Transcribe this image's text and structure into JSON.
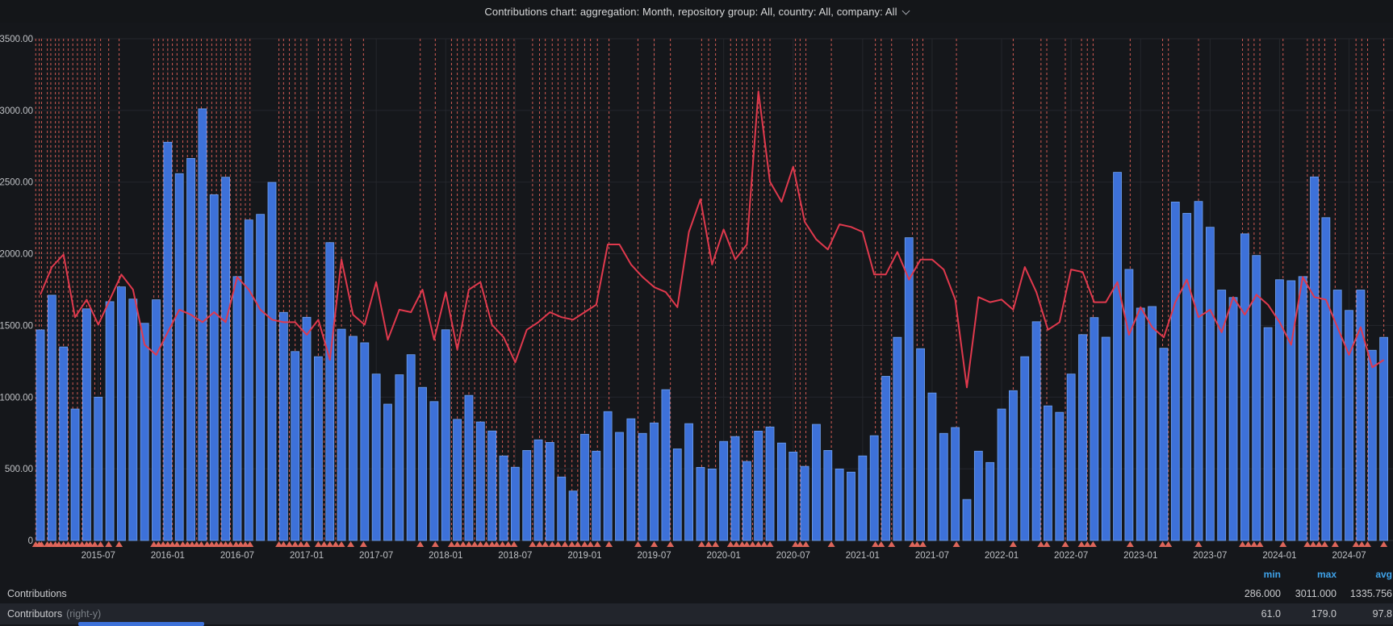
{
  "header": {
    "title": "Contributions chart: aggregation: Month, repository group: All, country: All, company: All",
    "chevron_icon": "chevron-down"
  },
  "chart_data": {
    "type": "bar+line",
    "title": "Contributions by month with contributors overlay",
    "start_month": "2015-02",
    "x_tick_labels": [
      "2015-07",
      "2016-01",
      "2016-07",
      "2017-01",
      "2017-07",
      "2018-01",
      "2018-07",
      "2019-01",
      "2019-07",
      "2020-01",
      "2020-07",
      "2021-01",
      "2021-07",
      "2022-01",
      "2022-07",
      "2023-01",
      "2023-07",
      "2024-01",
      "2024-07"
    ],
    "x_tick_first_index": 5,
    "x_tick_every": 6,
    "y_left": {
      "min": 0,
      "max": 3500,
      "step": 500,
      "tick_labels": [
        "3500.00",
        "3000.00",
        "2500.00",
        "2000.00",
        "1500.00",
        "1000.00",
        "500.00",
        "0"
      ]
    },
    "y_right": {
      "min": 0,
      "max": 200
    },
    "grid": true,
    "legend_position": "bottom",
    "series": [
      {
        "name": "Contributions",
        "type": "bar",
        "axis": "left",
        "color": "#3d71d9",
        "values": [
          1469,
          1711,
          1350,
          917,
          1616,
          1000,
          1666,
          1769,
          1684,
          1515,
          1679,
          2778,
          2559,
          2665,
          3011,
          2412,
          2534,
          1841,
          2236,
          2275,
          2498,
          1591,
          1318,
          1557,
          1282,
          2078,
          1474,
          1424,
          1379,
          1161,
          951,
          1156,
          1296,
          1068,
          969,
          1470,
          845,
          1012,
          827,
          764,
          590,
          511,
          628,
          702,
          684,
          443,
          345,
          741,
          623,
          899,
          754,
          849,
          747,
          820,
          1052,
          639,
          815,
          510,
          499,
          691,
          725,
          551,
          763,
          792,
          680,
          617,
          517,
          810,
          628,
          499,
          477,
          590,
          731,
          1145,
          1417,
          2112,
          1338,
          1029,
          747,
          788,
          286,
          623,
          544,
          917,
          1045,
          1282,
          1526,
          939,
          894,
          1161,
          1436,
          1555,
          1418,
          2568,
          1891,
          1621,
          1632,
          1341,
          2361,
          2282,
          2365,
          2185,
          1747,
          1695,
          2139,
          1988,
          1485,
          1819,
          1812,
          1841,
          2536,
          2252,
          1747,
          1605,
          1747,
          1327,
          1417
        ]
      },
      {
        "name": "Contributors",
        "type": "line",
        "axis": "right",
        "color": "#e0394d",
        "values": [
          98,
          109,
          114,
          89,
          96,
          86,
          96,
          106,
          100,
          78,
          74,
          83,
          92,
          90,
          87,
          91,
          87,
          105,
          100,
          92,
          88,
          87,
          87,
          82,
          88,
          72,
          112,
          90,
          86,
          103,
          80,
          92,
          91,
          100,
          80,
          99,
          76,
          100,
          103,
          86,
          81,
          71,
          84,
          87,
          91,
          89,
          88,
          91,
          94,
          118,
          118,
          110,
          105,
          101,
          99,
          93,
          123,
          136,
          110,
          124,
          112,
          118,
          179,
          143,
          135,
          149,
          127,
          120,
          116,
          126,
          125,
          123,
          106,
          106,
          115,
          104,
          112,
          112,
          108,
          96,
          61,
          97,
          95,
          96,
          92,
          109,
          99,
          84,
          87,
          108,
          107,
          95,
          95,
          103,
          82,
          93,
          85,
          81,
          95,
          104,
          89,
          92,
          83,
          97,
          90,
          98,
          94,
          87,
          78,
          105,
          97,
          96,
          85,
          74,
          85,
          69,
          72
        ]
      }
    ],
    "annotations": {
      "color": "#f2675e",
      "marker_color": "#e8695e",
      "month_positions": [
        -0.4,
        -0.1,
        0.1,
        0.6,
        0.9,
        1.3,
        1.6,
        2.0,
        2.4,
        2.8,
        3.2,
        3.6,
        4.0,
        4.3,
        4.7,
        5.2,
        5.9,
        6.8,
        9.8,
        10.2,
        10.6,
        11.0,
        11.4,
        11.8,
        12.3,
        12.7,
        13.1,
        13.5,
        13.9,
        14.4,
        14.8,
        15.2,
        15.6,
        16.0,
        16.4,
        16.9,
        17.3,
        17.7,
        18.1,
        20.6,
        21.0,
        21.5,
        22.0,
        22.5,
        23.0,
        24.0,
        24.5,
        25.0,
        25.5,
        26.0,
        26.8,
        27.9,
        32.8,
        34.1,
        35.5,
        36.0,
        36.5,
        37.0,
        37.5,
        38.0,
        38.5,
        39.0,
        39.4,
        39.9,
        40.4,
        40.9,
        42.5,
        43.1,
        43.6,
        44.2,
        44.7,
        45.3,
        45.9,
        46.4,
        47.0,
        47.5,
        48.1,
        49.1,
        51.6,
        53.0,
        54.4,
        57.1,
        57.7,
        58.3,
        59.6,
        60.1,
        60.6,
        61.0,
        61.5,
        62.0,
        62.5,
        63.0,
        65.2,
        65.6,
        66.1,
        68.3,
        72.1,
        72.6,
        73.5,
        75.3,
        75.7,
        76.2,
        79.1,
        84.0,
        86.4,
        86.9,
        88.5,
        89.9,
        90.4,
        90.9,
        94.1,
        96.9,
        97.4,
        100.0,
        103.8,
        104.3,
        104.8,
        105.3,
        107.3,
        109.4,
        109.9,
        110.4,
        110.9,
        111.8,
        113.6,
        114.1,
        114.6,
        116.0
      ]
    },
    "colors": {
      "background": "#15171b",
      "grid": "#25272c",
      "axis_text": "#bfc1c5"
    }
  },
  "legend": {
    "headers": {
      "min": "min",
      "max": "max",
      "avg": "avg"
    },
    "rows": [
      {
        "label": "Contributions",
        "suffix": "",
        "min": "286.000",
        "max": "3011.000",
        "avg": "1335.756"
      },
      {
        "label": "Contributors",
        "suffix": "(right-y)",
        "min": "61.0",
        "max": "179.0",
        "avg": "97.8"
      }
    ]
  }
}
